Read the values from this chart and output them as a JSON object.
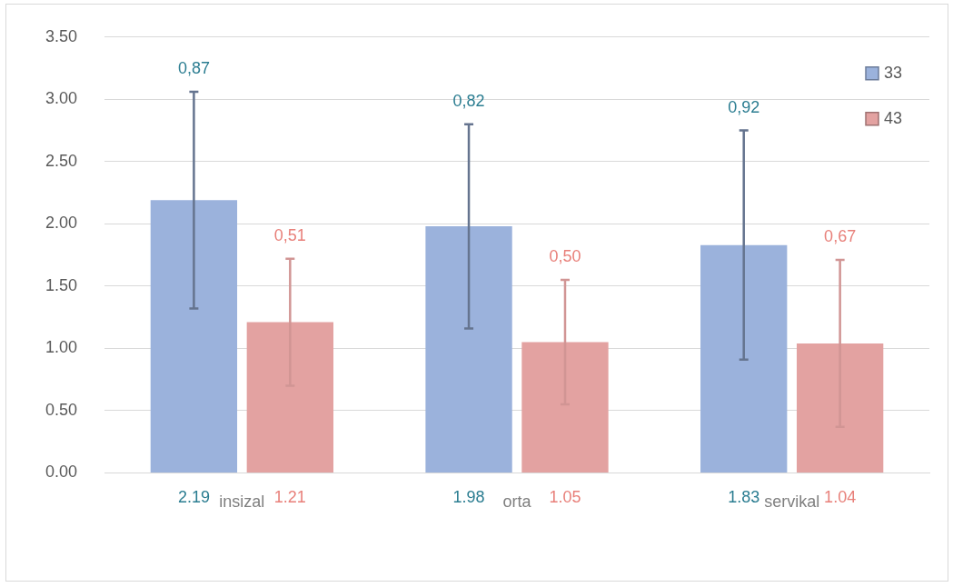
{
  "chart_data": {
    "type": "bar",
    "categories": [
      "insizal",
      "orta",
      "servikal"
    ],
    "series": [
      {
        "name": "33",
        "color": "#9bb2dc",
        "values": [
          2.19,
          1.98,
          1.83
        ],
        "errors": [
          0.87,
          0.82,
          0.92
        ]
      },
      {
        "name": "43",
        "color": "#e3a2a1",
        "values": [
          1.21,
          1.05,
          1.04
        ],
        "errors": [
          0.51,
          0.5,
          0.67
        ]
      }
    ],
    "ylim": [
      0,
      3.5
    ],
    "yticks": [
      {
        "value": 0,
        "label": "0.00"
      },
      {
        "value": 0.5,
        "label": "0.50"
      },
      {
        "value": 1,
        "label": "1.00"
      },
      {
        "value": 1.5,
        "label": "1.50"
      },
      {
        "value": 2,
        "label": "2.00"
      },
      {
        "value": 2.5,
        "label": "2.50"
      },
      {
        "value": 3,
        "label": "3.00"
      },
      {
        "value": 3.5,
        "label": "3.50"
      }
    ],
    "grid": "y",
    "legend": "top right",
    "data_labels": true,
    "annotations": [
      "0,87",
      "0,51",
      "0,82",
      "0,50",
      "0,92",
      "0,67"
    ]
  }
}
